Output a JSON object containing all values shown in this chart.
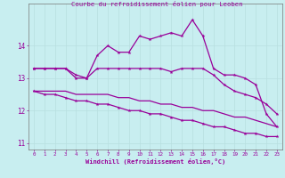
{
  "title": "Courbe du refroidissement éolien pour Leoben",
  "xlabel": "Windchill (Refroidissement éolien,°C)",
  "background_color": "#c8eef0",
  "grid_color": "#b8dfe0",
  "line_color": "#990099",
  "x_hours": [
    0,
    1,
    2,
    3,
    4,
    5,
    6,
    7,
    8,
    9,
    10,
    11,
    12,
    13,
    14,
    15,
    16,
    17,
    18,
    19,
    20,
    21,
    22,
    23
  ],
  "series1": [
    13.3,
    13.3,
    13.3,
    13.3,
    13.1,
    13.0,
    13.7,
    14.0,
    13.8,
    13.8,
    14.3,
    14.2,
    14.3,
    14.4,
    14.3,
    14.8,
    14.3,
    13.3,
    13.1,
    13.1,
    13.0,
    12.8,
    11.9,
    11.5
  ],
  "series2": [
    13.3,
    13.3,
    13.3,
    13.3,
    13.0,
    13.0,
    13.3,
    13.3,
    13.3,
    13.3,
    13.3,
    13.3,
    13.3,
    13.2,
    13.3,
    13.3,
    13.3,
    13.1,
    12.8,
    12.6,
    12.5,
    12.4,
    12.2,
    11.9
  ],
  "series3": [
    12.6,
    12.6,
    12.6,
    12.6,
    12.5,
    12.5,
    12.5,
    12.5,
    12.4,
    12.4,
    12.3,
    12.3,
    12.2,
    12.2,
    12.1,
    12.1,
    12.0,
    12.0,
    11.9,
    11.8,
    11.8,
    11.7,
    11.6,
    11.5
  ],
  "series4": [
    12.6,
    12.5,
    12.5,
    12.4,
    12.3,
    12.3,
    12.2,
    12.2,
    12.1,
    12.0,
    12.0,
    11.9,
    11.9,
    11.8,
    11.7,
    11.7,
    11.6,
    11.5,
    11.5,
    11.4,
    11.3,
    11.3,
    11.2,
    11.2
  ],
  "ylim": [
    10.8,
    15.3
  ],
  "yticks": [
    11,
    12,
    13,
    14
  ],
  "xtick_labels": [
    "0",
    "1",
    "2",
    "3",
    "4",
    "5",
    "6",
    "7",
    "8",
    "9",
    "10",
    "11",
    "12",
    "13",
    "14",
    "15",
    "16",
    "17",
    "18",
    "19",
    "20",
    "21",
    "22",
    "23"
  ]
}
